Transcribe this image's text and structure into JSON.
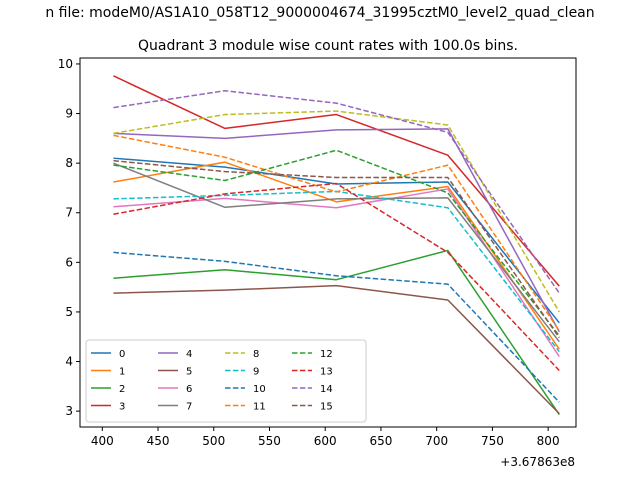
{
  "suptitle": "n file: modeM0/AS1A10_058T12_9000004674_31995cztM0_level2_quad_clean",
  "chart_data": {
    "type": "line",
    "title": "Quadrant 3 module wise count rates with 100.0s bins.",
    "xlabel": "",
    "ylabel": "",
    "x_offset_label": "+3.67863e8",
    "x": [
      410,
      510,
      610,
      710,
      810
    ],
    "xlim": [
      380,
      825
    ],
    "ylim": [
      2.68,
      10.12
    ],
    "xticks": [
      400,
      450,
      500,
      550,
      600,
      650,
      700,
      750,
      800
    ],
    "yticks": [
      3,
      4,
      5,
      6,
      7,
      8,
      9,
      10
    ],
    "legend_position": "lower-left",
    "series": [
      {
        "name": "0",
        "color": "#1f77b4",
        "dash": "solid",
        "values": [
          8.1,
          7.92,
          7.58,
          7.62,
          4.78
        ]
      },
      {
        "name": "1",
        "color": "#ff7f0e",
        "dash": "solid",
        "values": [
          7.62,
          8.02,
          7.22,
          7.53,
          4.25
        ]
      },
      {
        "name": "2",
        "color": "#2ca02c",
        "dash": "solid",
        "values": [
          5.68,
          5.85,
          5.65,
          6.24,
          2.93
        ]
      },
      {
        "name": "3",
        "color": "#d62728",
        "dash": "solid",
        "values": [
          9.76,
          8.7,
          8.98,
          8.16,
          5.52
        ]
      },
      {
        "name": "4",
        "color": "#9467bd",
        "dash": "solid",
        "values": [
          8.6,
          8.5,
          8.67,
          8.69,
          4.6
        ]
      },
      {
        "name": "5",
        "color": "#8c564b",
        "dash": "solid",
        "values": [
          5.38,
          5.44,
          5.53,
          5.24,
          2.95
        ]
      },
      {
        "name": "6",
        "color": "#e377c2",
        "dash": "solid",
        "values": [
          7.12,
          7.29,
          7.1,
          7.48,
          4.1
        ]
      },
      {
        "name": "7",
        "color": "#7f7f7f",
        "dash": "solid",
        "values": [
          8.0,
          7.11,
          7.28,
          7.3,
          4.4
        ]
      },
      {
        "name": "8",
        "color": "#bcbd22",
        "dash": "dashed",
        "values": [
          8.6,
          8.98,
          9.05,
          8.77,
          5.0
        ]
      },
      {
        "name": "9",
        "color": "#17becf",
        "dash": "dashed",
        "values": [
          7.28,
          7.35,
          7.43,
          7.1,
          4.2
        ]
      },
      {
        "name": "10",
        "color": "#1f77b4",
        "dash": "dashed",
        "values": [
          6.2,
          6.02,
          5.73,
          5.56,
          3.18
        ]
      },
      {
        "name": "11",
        "color": "#ff7f0e",
        "dash": "dashed",
        "values": [
          8.56,
          8.12,
          7.42,
          7.96,
          4.62
        ]
      },
      {
        "name": "12",
        "color": "#2ca02c",
        "dash": "dashed",
        "values": [
          7.96,
          7.65,
          8.26,
          7.4,
          4.52
        ]
      },
      {
        "name": "13",
        "color": "#d62728",
        "dash": "dashed",
        "values": [
          6.97,
          7.38,
          7.59,
          6.2,
          3.82
        ]
      },
      {
        "name": "14",
        "color": "#9467bd",
        "dash": "dashed",
        "values": [
          9.12,
          9.46,
          9.21,
          8.62,
          5.38
        ]
      },
      {
        "name": "15",
        "color": "#8c564b",
        "dash": "dashed",
        "values": [
          8.05,
          7.83,
          7.71,
          7.71,
          4.48
        ]
      }
    ]
  }
}
